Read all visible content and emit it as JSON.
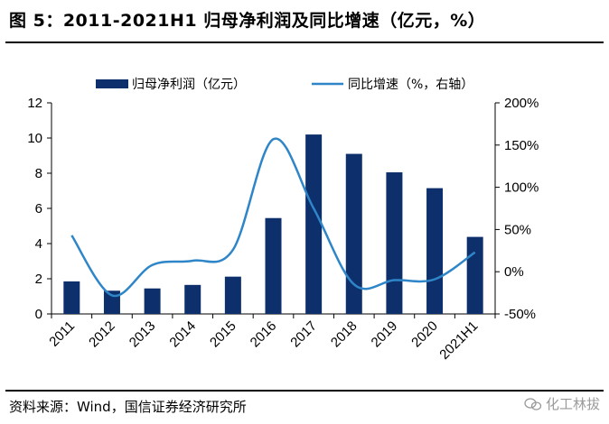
{
  "figure": {
    "title": "图 5：2011-2021H1 归母净利润及同比增速（亿元，%）",
    "source": "资料来源：Wind，国信证券经济研究所",
    "watermark": "化工林拔"
  },
  "colors": {
    "bar": "#0d2f6b",
    "line": "#2e86c8"
  },
  "chart_data": {
    "type": "bar",
    "categories": [
      "2011",
      "2012",
      "2013",
      "2014",
      "2015",
      "2016",
      "2017",
      "2018",
      "2019",
      "2020",
      "2021H1"
    ],
    "series": [
      {
        "name": "归母净利润（亿元）",
        "type": "bar",
        "axis": "left",
        "values": [
          1.85,
          1.32,
          1.45,
          1.65,
          2.12,
          5.45,
          10.2,
          9.1,
          8.05,
          7.15,
          4.38
        ]
      },
      {
        "name": "同比增速（%，右轴）",
        "type": "line",
        "axis": "right",
        "values": [
          43,
          -28,
          8,
          13,
          26,
          157,
          75,
          -15,
          -10,
          -9,
          23
        ]
      }
    ],
    "y_left": {
      "min": 0,
      "max": 12,
      "ticks": [
        "0",
        "2",
        "4",
        "6",
        "8",
        "10",
        "12"
      ]
    },
    "y_right": {
      "min": -50,
      "max": 200,
      "ticks": [
        "-50%",
        "0%",
        "50%",
        "100%",
        "150%",
        "200%"
      ]
    },
    "legend_position": "top",
    "grid": false
  }
}
